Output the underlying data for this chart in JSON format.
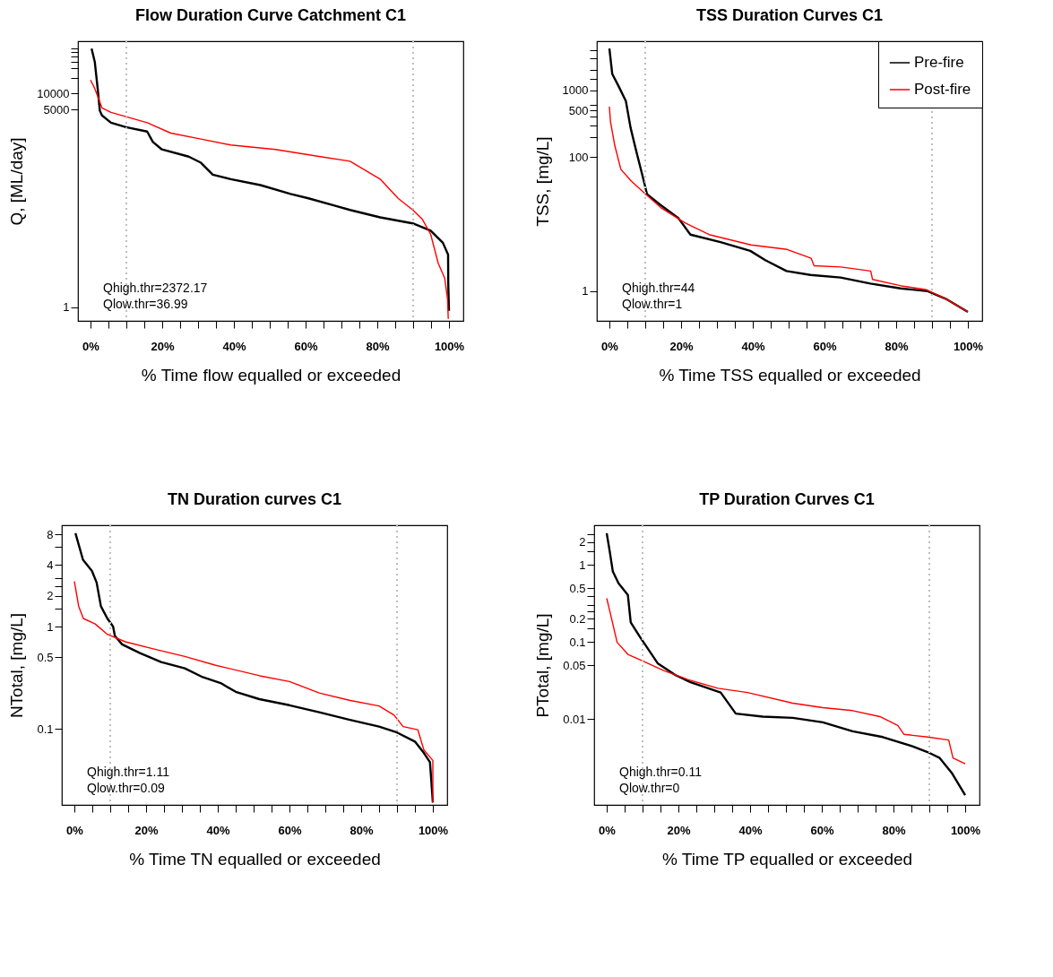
{
  "chart_data": [
    {
      "type": "line",
      "title": "Flow Duration Curve Catchment C1",
      "xlabel": "% Time flow equalled or exceeded",
      "ylabel": "Q, [ML/day]",
      "log": true,
      "xlim": [
        -3.5,
        104
      ],
      "xticks": [
        {
          "value": 0,
          "label": "0%"
        },
        {
          "value": 5,
          "label": null
        },
        {
          "value": 10,
          "label": null
        },
        {
          "value": 15,
          "label": null
        },
        {
          "value": 20,
          "label": "20%"
        },
        {
          "value": 25,
          "label": null
        },
        {
          "value": 30,
          "label": null
        },
        {
          "value": 35,
          "label": null
        },
        {
          "value": 40,
          "label": "40%"
        },
        {
          "value": 45,
          "label": null
        },
        {
          "value": 50,
          "label": null
        },
        {
          "value": 55,
          "label": null
        },
        {
          "value": 60,
          "label": "60%"
        },
        {
          "value": 65,
          "label": null
        },
        {
          "value": 70,
          "label": null
        },
        {
          "value": 75,
          "label": null
        },
        {
          "value": 80,
          "label": "80%"
        },
        {
          "value": 85,
          "label": null
        },
        {
          "value": 90,
          "label": null
        },
        {
          "value": 95,
          "label": null
        },
        {
          "value": 100,
          "label": "100%"
        }
      ],
      "ylim": [
        0.55,
        96000
      ],
      "yticks": [
        1,
        5000,
        10000,
        {
          "value": 20000,
          "label": null
        },
        {
          "value": 30000,
          "label": null
        },
        {
          "value": 40000,
          "label": null
        },
        {
          "value": 50000,
          "label": null
        },
        {
          "value": 60000,
          "label": null
        },
        {
          "value": 70000,
          "label": null
        }
      ],
      "series": [
        {
          "color": "#000000",
          "x": [
            0.3,
            1.2,
            2.0,
            2.6,
            3.2,
            5.7,
            9.9,
            15.8,
            17.4,
            19.9,
            27.4,
            30.8,
            34.1,
            39.1,
            47.4,
            55.8,
            60.8,
            68.3,
            72.4,
            80.8,
            89.9,
            94.9,
            98.3,
            99.75,
            99.8,
            100
          ],
          "values": [
            70000,
            39000,
            12400,
            4770,
            3900,
            2850,
            2350,
            1950,
            1240,
            900,
            660,
            507,
            303,
            250,
            193,
            132,
            109,
            79,
            66,
            48,
            37,
            27,
            16,
            9.6,
            2.7,
            0.85
          ]
        },
        {
          "color": "#ff0000",
          "x": [
            0,
            1.2,
            2.3,
            3.2,
            5.7,
            9.9,
            15.8,
            22.4,
            30.8,
            39.1,
            51.6,
            64.1,
            72.4,
            80.8,
            85.8,
            89.9,
            92.5,
            94.9,
            97.0,
            98.8,
            99.6,
            99.8
          ],
          "values": [
            18000,
            12400,
            7900,
            5400,
            4450,
            3700,
            2850,
            1820,
            1410,
            1090,
            900,
            660,
            540,
            250,
            109,
            66,
            45,
            23,
            6.6,
            3.5,
            1.4,
            0.6
          ]
        }
      ],
      "ref_lines": [
        {
          "axis": "x",
          "value": 10,
          "color": "#bebebe",
          "line_style": "dotted"
        },
        {
          "axis": "x",
          "value": 90,
          "color": "#bebebe",
          "line_style": "dotted"
        }
      ],
      "annotations": [
        "Qhigh.thr=2372.17",
        "Qlow.thr=36.99"
      ]
    },
    {
      "type": "line",
      "title": "TSS Duration Curves C1",
      "xlabel": "% Time TSS equalled or exceeded",
      "ylabel": "TSS, [mg/L]",
      "log": true,
      "legend": "top right",
      "xlim": [
        -3.5,
        104
      ],
      "xticks": [
        {
          "value": 0,
          "label": "0%"
        },
        {
          "value": 5,
          "label": null
        },
        {
          "value": 10,
          "label": null
        },
        {
          "value": 15,
          "label": null
        },
        {
          "value": 20,
          "label": "20%"
        },
        {
          "value": 25,
          "label": null
        },
        {
          "value": 30,
          "label": null
        },
        {
          "value": 35,
          "label": null
        },
        {
          "value": 40,
          "label": "40%"
        },
        {
          "value": 45,
          "label": null
        },
        {
          "value": 50,
          "label": null
        },
        {
          "value": 55,
          "label": null
        },
        {
          "value": 60,
          "label": "60%"
        },
        {
          "value": 65,
          "label": null
        },
        {
          "value": 70,
          "label": null
        },
        {
          "value": 75,
          "label": null
        },
        {
          "value": 80,
          "label": "80%"
        },
        {
          "value": 85,
          "label": null
        },
        {
          "value": 90,
          "label": null
        },
        {
          "value": 95,
          "label": null
        },
        {
          "value": 100,
          "label": "100%"
        }
      ],
      "ylim": [
        0.36,
        5400
      ],
      "yticks": [
        1,
        100,
        {
          "value": 200,
          "label": null
        },
        {
          "value": 300,
          "label": null
        },
        {
          "value": 400,
          "label": null
        },
        500,
        {
          "value": 600,
          "label": null
        },
        1000,
        {
          "value": 1500,
          "label": null
        },
        {
          "value": 2000,
          "label": null
        },
        {
          "value": 3000,
          "label": null
        },
        {
          "value": 4000,
          "label": null
        }
      ],
      "series": [
        {
          "name": "Pre-fire",
          "color": "#000000",
          "x": [
            0,
            0.8,
            2.5,
            4.6,
            5.9,
            7.5,
            9.2,
            10.5,
            14.2,
            19.2,
            22.6,
            31,
            39.3,
            43.5,
            49.4,
            56.1,
            64.5,
            72.8,
            81.2,
            88.8,
            93.8,
            100
          ],
          "values": [
            4200,
            1750,
            1170,
            690,
            277,
            123,
            54,
            28,
            19.5,
            12.4,
            7,
            5.4,
            4,
            2.9,
            2.0,
            1.75,
            1.6,
            1.3,
            1.1,
            1.0,
            0.77,
            0.49
          ]
        },
        {
          "name": "Post-fire",
          "color": "#ff0000",
          "x": [
            0,
            0.3,
            1.5,
            3.2,
            6.1,
            9.8,
            14.4,
            21.1,
            27.8,
            39.5,
            49.6,
            56.3,
            57.1,
            64.6,
            72.9,
            73.4,
            81.4,
            88.5,
            93.8,
            100
          ],
          "values": [
            570,
            340,
            150,
            66,
            44,
            29,
            17.6,
            10.5,
            7,
            4.9,
            4.2,
            3.1,
            2.4,
            2.3,
            2.0,
            1.5,
            1.2,
            1.05,
            0.77,
            0.49
          ]
        }
      ],
      "ref_lines": [
        {
          "axis": "x",
          "value": 10,
          "color": "#bebebe",
          "line_style": "dotted"
        },
        {
          "axis": "x",
          "value": 90,
          "color": "#bebebe",
          "line_style": "dotted"
        }
      ],
      "annotations": [
        "Qhigh.thr=44",
        "Qlow.thr=1"
      ]
    },
    {
      "type": "line",
      "title": "TN Duration curves C1",
      "xlabel": "% Time TN equalled or exceeded",
      "ylabel": "NTotal, [mg/L]",
      "log": true,
      "xlim": [
        -3.5,
        104
      ],
      "xticks": [
        {
          "value": 0,
          "label": "0%"
        },
        {
          "value": 5,
          "label": null
        },
        {
          "value": 10,
          "label": null
        },
        {
          "value": 15,
          "label": null
        },
        {
          "value": 20,
          "label": "20%"
        },
        {
          "value": 25,
          "label": null
        },
        {
          "value": 30,
          "label": null
        },
        {
          "value": 35,
          "label": null
        },
        {
          "value": 40,
          "label": "40%"
        },
        {
          "value": 45,
          "label": null
        },
        {
          "value": 50,
          "label": null
        },
        {
          "value": 55,
          "label": null
        },
        {
          "value": 60,
          "label": "60%"
        },
        {
          "value": 65,
          "label": null
        },
        {
          "value": 70,
          "label": null
        },
        {
          "value": 75,
          "label": null
        },
        {
          "value": 80,
          "label": "80%"
        },
        {
          "value": 85,
          "label": null
        },
        {
          "value": 90,
          "label": null
        },
        {
          "value": 95,
          "label": null
        },
        {
          "value": 100,
          "label": "100%"
        }
      ],
      "ylim": [
        0.018,
        9.8
      ],
      "yticks": [
        0.1,
        0.5,
        1,
        {
          "value": 1.5,
          "label": null
        },
        2,
        {
          "value": 2.5,
          "label": null
        },
        {
          "value": 3,
          "label": null
        },
        4,
        {
          "value": 6,
          "label": null
        },
        8
      ],
      "series": [
        {
          "color": "#000000",
          "x": [
            0.3,
            2.4,
            4.9,
            6.2,
            7.4,
            9.2,
            10.8,
            11.3,
            13.3,
            18.3,
            24.2,
            30.8,
            35.8,
            40.8,
            45.0,
            51.6,
            60,
            68.3,
            76.6,
            85,
            90,
            95,
            97.5,
            99.2,
            100
          ],
          "values": [
            8.2,
            4.5,
            3.5,
            2.7,
            1.58,
            1.2,
            1.0,
            0.81,
            0.67,
            0.55,
            0.45,
            0.39,
            0.32,
            0.28,
            0.23,
            0.195,
            0.17,
            0.145,
            0.123,
            0.105,
            0.092,
            0.075,
            0.058,
            0.047,
            0.019
          ]
        },
        {
          "color": "#ff0000",
          "x": [
            0,
            1.2,
            2.5,
            5.8,
            9.2,
            14.2,
            22.5,
            30.8,
            39.2,
            51.7,
            60,
            68.3,
            76.7,
            85,
            89.2,
            91.7,
            95.8,
            97.5,
            100,
            100
          ],
          "values": [
            2.77,
            1.58,
            1.2,
            1.06,
            0.84,
            0.71,
            0.6,
            0.51,
            0.42,
            0.33,
            0.29,
            0.224,
            0.19,
            0.167,
            0.136,
            0.105,
            0.098,
            0.062,
            0.049,
            0.019
          ]
        }
      ],
      "ref_lines": [
        {
          "axis": "x",
          "value": 10,
          "color": "#bebebe",
          "line_style": "dotted"
        },
        {
          "axis": "x",
          "value": 90,
          "color": "#bebebe",
          "line_style": "dotted"
        }
      ],
      "annotations": [
        "Qhigh.thr=1.11",
        "Qlow.thr=0.09"
      ]
    },
    {
      "type": "line",
      "title": "TP Duration Curves C1",
      "xlabel": "% Time TP equalled or exceeded",
      "ylabel": "PTotal, [mg/L]",
      "log": true,
      "xlim": [
        -3.5,
        104
      ],
      "xticks": [
        {
          "value": 0,
          "label": "0%"
        },
        {
          "value": 5,
          "label": null
        },
        {
          "value": 10,
          "label": null
        },
        {
          "value": 15,
          "label": null
        },
        {
          "value": 20,
          "label": "20%"
        },
        {
          "value": 25,
          "label": null
        },
        {
          "value": 30,
          "label": null
        },
        {
          "value": 35,
          "label": null
        },
        {
          "value": 40,
          "label": "40%"
        },
        {
          "value": 45,
          "label": null
        },
        {
          "value": 50,
          "label": null
        },
        {
          "value": 55,
          "label": null
        },
        {
          "value": 60,
          "label": "60%"
        },
        {
          "value": 65,
          "label": null
        },
        {
          "value": 70,
          "label": null
        },
        {
          "value": 75,
          "label": null
        },
        {
          "value": 80,
          "label": "80%"
        },
        {
          "value": 85,
          "label": null
        },
        {
          "value": 90,
          "label": null
        },
        {
          "value": 95,
          "label": null
        },
        {
          "value": 100,
          "label": "100%"
        }
      ],
      "ylim": [
        0.00076,
        3.3
      ],
      "yticks": [
        0.01,
        0.05,
        0.1,
        {
          "value": 0.15,
          "label": null
        },
        0.2,
        {
          "value": 0.25,
          "label": null
        },
        {
          "value": 0.3,
          "label": null
        },
        {
          "value": 0.4,
          "label": null
        },
        0.5,
        1,
        {
          "value": 1.5,
          "label": null
        },
        2,
        {
          "value": 2.5,
          "label": null
        }
      ],
      "series": [
        {
          "color": "#000000",
          "x": [
            0,
            0.8,
            1.7,
            3.3,
            5.9,
            6.7,
            9.2,
            14.2,
            19.2,
            23.4,
            31.8,
            36,
            43.5,
            51.9,
            60.3,
            68.6,
            77,
            85.3,
            89.5,
            92.9,
            96.2,
            100
          ],
          "values": [
            2.6,
            1.55,
            0.83,
            0.58,
            0.41,
            0.18,
            0.118,
            0.053,
            0.037,
            0.03,
            0.022,
            0.0117,
            0.0107,
            0.0103,
            0.009,
            0.0069,
            0.0058,
            0.0044,
            0.0037,
            0.0031,
            0.002,
            0.00102
          ]
        },
        {
          "color": "#ff0000",
          "x": [
            0,
            0.8,
            2.9,
            5.9,
            9.6,
            15.9,
            22.6,
            31,
            39.3,
            51.9,
            60.3,
            68.6,
            76.2,
            81.2,
            82.9,
            89.5,
            95.4,
            96.6,
            100
          ],
          "values": [
            0.37,
            0.26,
            0.099,
            0.069,
            0.058,
            0.0425,
            0.0325,
            0.025,
            0.022,
            0.016,
            0.014,
            0.0128,
            0.0107,
            0.0082,
            0.0063,
            0.0058,
            0.0053,
            0.0031,
            0.0026
          ]
        }
      ],
      "ref_lines": [
        {
          "axis": "x",
          "value": 10,
          "color": "#bebebe",
          "line_style": "dotted"
        },
        {
          "axis": "x",
          "value": 90,
          "color": "#bebebe",
          "line_style": "dotted"
        }
      ],
      "annotations": [
        "Qhigh.thr=0.11",
        "Qlow.thr=0"
      ]
    }
  ]
}
